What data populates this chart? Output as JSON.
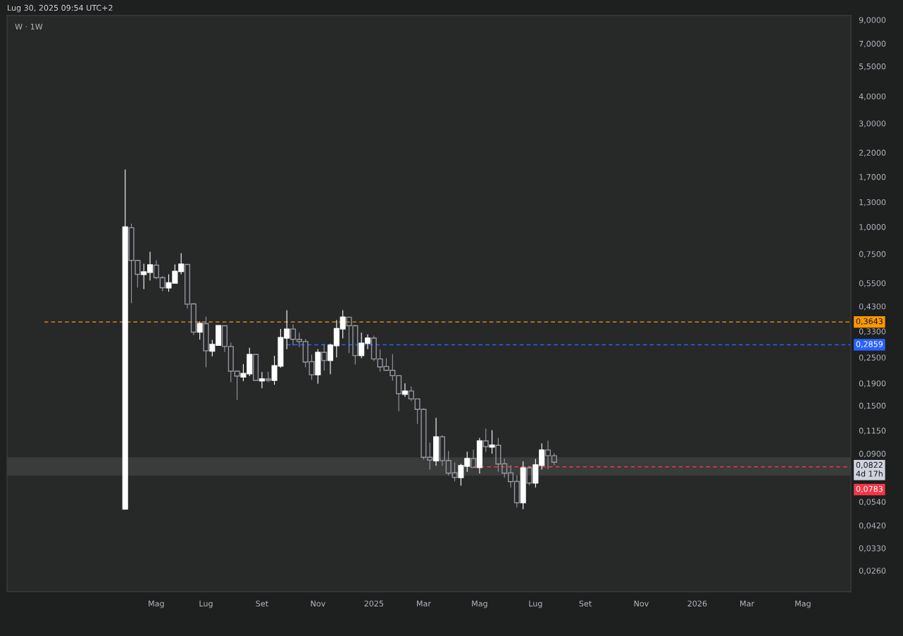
{
  "chart_data": {
    "type": "candlestick",
    "title": "W · 1W",
    "subtitle": "Lug 30, 2025 09:54 UTC+2",
    "x": [
      "2024-04-01",
      "2024-04-08",
      "2024-04-15",
      "2024-04-22",
      "2024-04-29",
      "2024-05-06",
      "2024-05-13",
      "2024-05-20",
      "2024-05-27",
      "2024-06-03",
      "2024-06-10",
      "2024-06-17",
      "2024-06-24",
      "2024-07-01",
      "2024-07-08",
      "2024-07-15",
      "2024-07-22",
      "2024-07-29",
      "2024-08-05",
      "2024-08-12",
      "2024-08-19",
      "2024-08-26",
      "2024-09-02",
      "2024-09-09",
      "2024-09-16",
      "2024-09-23",
      "2024-09-30",
      "2024-10-07",
      "2024-10-14",
      "2024-10-21",
      "2024-10-28",
      "2024-11-04",
      "2024-11-11",
      "2024-11-18",
      "2024-11-25",
      "2024-12-02",
      "2024-12-09",
      "2024-12-16",
      "2024-12-23",
      "2024-12-30",
      "2025-01-06",
      "2025-01-13",
      "2025-01-20",
      "2025-01-27",
      "2025-02-03",
      "2025-02-10",
      "2025-02-17",
      "2025-02-24",
      "2025-03-03",
      "2025-03-10",
      "2025-03-17",
      "2025-03-24",
      "2025-03-31",
      "2025-04-07",
      "2025-04-14",
      "2025-04-21",
      "2025-04-28",
      "2025-05-05",
      "2025-05-12",
      "2025-05-19",
      "2025-05-26",
      "2025-06-02",
      "2025-06-09",
      "2025-06-16",
      "2025-06-23",
      "2025-06-30",
      "2025-07-07",
      "2025-07-14",
      "2025-07-21",
      "2025-07-28"
    ],
    "ohlc": [
      [
        0.05,
        1.83,
        0.05,
        1.0
      ],
      [
        0.99,
        1.03,
        0.446,
        0.7
      ],
      [
        0.7,
        0.7,
        0.527,
        0.604
      ],
      [
        0.603,
        0.673,
        0.518,
        0.62
      ],
      [
        0.616,
        0.764,
        0.568,
        0.668
      ],
      [
        0.666,
        0.698,
        0.576,
        0.583
      ],
      [
        0.583,
        0.59,
        0.507,
        0.524
      ],
      [
        0.523,
        0.601,
        0.504,
        0.552
      ],
      [
        0.55,
        0.668,
        0.55,
        0.624
      ],
      [
        0.622,
        0.753,
        0.607,
        0.673
      ],
      [
        0.671,
        0.671,
        0.421,
        0.44
      ],
      [
        0.441,
        0.444,
        0.318,
        0.327
      ],
      [
        0.327,
        0.365,
        0.303,
        0.359
      ],
      [
        0.358,
        0.384,
        0.226,
        0.268
      ],
      [
        0.267,
        0.3,
        0.254,
        0.287
      ],
      [
        0.284,
        0.351,
        0.284,
        0.351
      ],
      [
        0.35,
        0.35,
        0.266,
        0.281
      ],
      [
        0.281,
        0.291,
        0.193,
        0.216
      ],
      [
        0.216,
        0.216,
        0.16,
        0.205
      ],
      [
        0.203,
        0.232,
        0.195,
        0.211
      ],
      [
        0.21,
        0.276,
        0.206,
        0.258
      ],
      [
        0.258,
        0.258,
        0.196,
        0.196
      ],
      [
        0.195,
        0.213,
        0.181,
        0.199
      ],
      [
        0.199,
        0.214,
        0.193,
        0.196
      ],
      [
        0.196,
        0.253,
        0.188,
        0.229
      ],
      [
        0.228,
        0.337,
        0.225,
        0.309
      ],
      [
        0.307,
        0.411,
        0.274,
        0.338
      ],
      [
        0.338,
        0.354,
        0.285,
        0.303
      ],
      [
        0.303,
        0.324,
        0.28,
        0.296
      ],
      [
        0.296,
        0.303,
        0.226,
        0.238
      ],
      [
        0.239,
        0.257,
        0.198,
        0.208
      ],
      [
        0.208,
        0.272,
        0.19,
        0.264
      ],
      [
        0.264,
        0.287,
        0.218,
        0.242
      ],
      [
        0.242,
        0.288,
        0.21,
        0.285
      ],
      [
        0.283,
        0.37,
        0.251,
        0.34
      ],
      [
        0.338,
        0.411,
        0.307,
        0.384
      ],
      [
        0.383,
        0.383,
        0.263,
        0.35
      ],
      [
        0.35,
        0.352,
        0.233,
        0.255
      ],
      [
        0.255,
        0.324,
        0.249,
        0.291
      ],
      [
        0.29,
        0.318,
        0.274,
        0.307
      ],
      [
        0.307,
        0.314,
        0.242,
        0.246
      ],
      [
        0.246,
        0.271,
        0.216,
        0.226
      ],
      [
        0.227,
        0.247,
        0.218,
        0.218
      ],
      [
        0.218,
        0.258,
        0.196,
        0.206
      ],
      [
        0.206,
        0.206,
        0.142,
        0.17
      ],
      [
        0.169,
        0.189,
        0.165,
        0.175
      ],
      [
        0.175,
        0.183,
        0.158,
        0.161
      ],
      [
        0.161,
        0.161,
        0.124,
        0.144
      ],
      [
        0.144,
        0.145,
        0.0848,
        0.0866
      ],
      [
        0.0866,
        0.1007,
        0.0763,
        0.084
      ],
      [
        0.0834,
        0.131,
        0.0795,
        0.1077
      ],
      [
        0.1077,
        0.109,
        0.0795,
        0.0835
      ],
      [
        0.0836,
        0.0922,
        0.0716,
        0.0732
      ],
      [
        0.0735,
        0.0816,
        0.0675,
        0.07
      ],
      [
        0.0698,
        0.0805,
        0.0643,
        0.0793
      ],
      [
        0.0787,
        0.0915,
        0.0745,
        0.0855
      ],
      [
        0.0855,
        0.0934,
        0.0778,
        0.0778
      ],
      [
        0.0776,
        0.106,
        0.0732,
        0.103
      ],
      [
        0.103,
        0.117,
        0.0922,
        0.0969
      ],
      [
        0.0965,
        0.115,
        0.0902,
        0.0986
      ],
      [
        0.0983,
        0.106,
        0.0746,
        0.0807
      ],
      [
        0.0808,
        0.0851,
        0.07,
        0.0732
      ],
      [
        0.0734,
        0.0793,
        0.0631,
        0.0669
      ],
      [
        0.067,
        0.0712,
        0.051,
        0.0534
      ],
      [
        0.0534,
        0.0825,
        0.0501,
        0.0775
      ],
      [
        0.0774,
        0.0787,
        0.0646,
        0.0659
      ],
      [
        0.0659,
        0.0848,
        0.0631,
        0.0799
      ],
      [
        0.0794,
        0.0999,
        0.0763,
        0.0936
      ],
      [
        0.0936,
        0.103,
        0.0767,
        0.088
      ],
      [
        0.088,
        0.09,
        0.08,
        0.0822
      ]
    ],
    "colors": [
      "#ffffff",
      "#9598a1",
      "#9598a1",
      "#ffffff",
      "#ffffff",
      "#9598a1",
      "#9598a1",
      "#ffffff",
      "#ffffff",
      "#ffffff",
      "#9598a1",
      "#9598a1",
      "#ffffff",
      "#9598a1",
      "#ffffff",
      "#ffffff",
      "#9598a1",
      "#9598a1",
      "#9598a1",
      "#ffffff",
      "#ffffff",
      "#9598a1",
      "#ffffff",
      "#9598a1",
      "#ffffff",
      "#ffffff",
      "#ffffff",
      "#9598a1",
      "#9598a1",
      "#9598a1",
      "#9598a1",
      "#ffffff",
      "#9598a1",
      "#ffffff",
      "#ffffff",
      "#ffffff",
      "#9598a1",
      "#9598a1",
      "#ffffff",
      "#ffffff",
      "#9598a1",
      "#9598a1",
      "#9598a1",
      "#9598a1",
      "#9598a1",
      "#ffffff",
      "#9598a1",
      "#9598a1",
      "#9598a1",
      "#9598a1",
      "#ffffff",
      "#9598a1",
      "#9598a1",
      "#9598a1",
      "#ffffff",
      "#ffffff",
      "#9598a1",
      "#ffffff",
      "#9598a1",
      "#ffffff",
      "#9598a1",
      "#9598a1",
      "#9598a1",
      "#9598a1",
      "#ffffff",
      "#9598a1",
      "#ffffff",
      "#ffffff",
      "#9598a1",
      "#9598a1"
    ],
    "series": [
      {
        "type": "line",
        "x": [
          "2024-01-01",
          "2026-06-27"
        ],
        "values": [
          0.3643,
          0.3643
        ],
        "color": "#ff9800",
        "line_style": "dashed",
        "value_labels": [
          null,
          "0,3643"
        ]
      },
      {
        "type": "line",
        "x": [
          "2024-09-30",
          "2026-06-27"
        ],
        "values": [
          0.2859,
          0.2859
        ],
        "color": "#2962ff",
        "line_style": "dashed",
        "value_labels": [
          null,
          "0,2859"
        ]
      },
      {
        "type": "line",
        "x": [
          "2025-04-28",
          "2026-06-27"
        ],
        "values": [
          0.0783,
          0.0783
        ],
        "color": "#f23645",
        "line_style": "dashed",
        "value_labels": [
          null,
          "0,0783"
        ]
      }
    ],
    "bands": [
      {
        "axis": "y",
        "from": 0.0713,
        "to": 0.0866,
        "color": "#3a3b3b"
      }
    ],
    "annotations": [
      "0,0822\n4d 17h"
    ],
    "log": true,
    "xlim": [
      "2023-11-20",
      "2026-06-27"
    ],
    "ylim": [
      0.0208,
      9.43
    ],
    "xticks": [
      {
        "value": "2024-05-06",
        "label": "Mag"
      },
      {
        "value": "2024-07-01",
        "label": "Lug"
      },
      {
        "value": "2024-09-02",
        "label": "Set"
      },
      {
        "value": "2024-11-04",
        "label": "Nov"
      },
      {
        "value": "2025-01-06",
        "label": "2025"
      },
      {
        "value": "2025-03-03",
        "label": "Mar"
      },
      {
        "value": "2025-05-05",
        "label": "Mag"
      },
      {
        "value": "2025-07-07",
        "label": "Lug"
      },
      {
        "value": "2025-09-01",
        "label": "Set"
      },
      {
        "value": "2025-11-03",
        "label": "Nov"
      },
      {
        "value": "2026-01-05",
        "label": "2026"
      },
      {
        "value": "2026-03-02",
        "label": "Mar"
      },
      {
        "value": "2026-05-04",
        "label": "Mag"
      }
    ],
    "yticks": [
      {
        "value": 0.026,
        "label": "0,0260"
      },
      {
        "value": 0.033,
        "label": "0,0330"
      },
      {
        "value": 0.042,
        "label": "0,0420"
      },
      {
        "value": 0.054,
        "label": "0,0540"
      },
      {
        "value": 0.09,
        "label": "0,0900"
      },
      {
        "value": 0.115,
        "label": "0,1150"
      },
      {
        "value": 0.15,
        "label": "0,1500"
      },
      {
        "value": 0.19,
        "label": "0,1900"
      },
      {
        "value": 0.25,
        "label": "0,2500"
      },
      {
        "value": 0.33,
        "label": "0,3300"
      },
      {
        "value": 0.43,
        "label": "0,4300"
      },
      {
        "value": 0.55,
        "label": "0,5500"
      },
      {
        "value": 0.75,
        "label": "0,7500"
      },
      {
        "value": 1.0,
        "label": "1,0000"
      },
      {
        "value": 1.3,
        "label": "1,3000"
      },
      {
        "value": 1.7,
        "label": "1,7000"
      },
      {
        "value": 2.2,
        "label": "2,2000"
      },
      {
        "value": 3.0,
        "label": "3,0000"
      },
      {
        "value": 4.0,
        "label": "4,0000"
      },
      {
        "value": 5.5,
        "label": "5,5000"
      },
      {
        "value": 7.0,
        "label": "7,0000"
      },
      {
        "value": 9.0,
        "label": "9,0000"
      }
    ]
  }
}
